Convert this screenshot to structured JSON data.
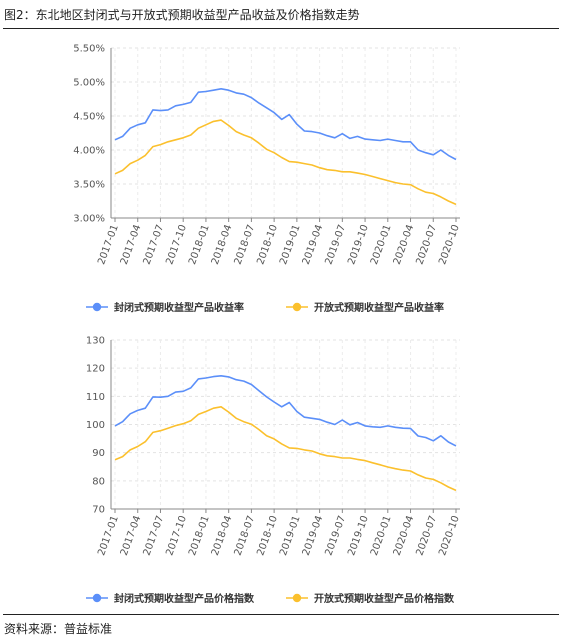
{
  "figure": {
    "title": "图2：东北地区封闭式与开放式预期收益型产品收益及价格指数走势",
    "source": "资料来源：普益标准"
  },
  "chart_data": [
    {
      "type": "line",
      "yformat": "percent",
      "ylim": [
        3.0,
        5.5
      ],
      "yticks": [
        3.0,
        3.5,
        4.0,
        4.5,
        5.0,
        5.5
      ],
      "ytick_labels": [
        "3.00%",
        "3.50%",
        "4.00%",
        "4.50%",
        "5.00%",
        "5.50%"
      ],
      "xtick_labels": [
        "2017-01",
        "2017-04",
        "2017-07",
        "2017-10",
        "2018-01",
        "2018-04",
        "2018-07",
        "2018-10",
        "2019-01",
        "2019-04",
        "2019-07",
        "2019-10",
        "2020-01",
        "2020-04",
        "2020-07",
        "2020-10"
      ],
      "grid": true,
      "legend_position": "bottom",
      "series": [
        {
          "name": "封闭式预期收益型产品收益率",
          "color": "#5b8ff9",
          "values": [
            4.15,
            4.2,
            4.32,
            4.37,
            4.4,
            4.59,
            4.58,
            4.59,
            4.65,
            4.67,
            4.7,
            4.85,
            4.86,
            4.88,
            4.9,
            4.88,
            4.84,
            4.82,
            4.77,
            4.69,
            4.62,
            4.55,
            4.45,
            4.52,
            4.38,
            4.28,
            4.27,
            4.25,
            4.21,
            4.18,
            4.24,
            4.17,
            4.2,
            4.16,
            4.15,
            4.14,
            4.16,
            4.14,
            4.12,
            4.12,
            4.0,
            3.96,
            3.93,
            4.0,
            3.92,
            3.86
          ]
        },
        {
          "name": "开放式预期收益型产品收益率",
          "color": "#fbc02d",
          "values": [
            3.65,
            3.7,
            3.8,
            3.85,
            3.92,
            4.05,
            4.08,
            4.12,
            4.15,
            4.18,
            4.22,
            4.32,
            4.37,
            4.42,
            4.44,
            4.36,
            4.27,
            4.22,
            4.18,
            4.1,
            4.01,
            3.96,
            3.89,
            3.83,
            3.82,
            3.8,
            3.78,
            3.74,
            3.71,
            3.7,
            3.68,
            3.68,
            3.66,
            3.64,
            3.61,
            3.58,
            3.55,
            3.52,
            3.5,
            3.49,
            3.43,
            3.38,
            3.36,
            3.31,
            3.25,
            3.2
          ]
        }
      ]
    },
    {
      "type": "line",
      "yformat": "number",
      "ylim": [
        70,
        130
      ],
      "yticks": [
        70,
        80,
        90,
        100,
        110,
        120,
        130
      ],
      "ytick_labels": [
        "70",
        "80",
        "90",
        "100",
        "110",
        "120",
        "130"
      ],
      "xtick_labels": [
        "2017-01",
        "2017-04",
        "2017-07",
        "2017-10",
        "2018-01",
        "2018-04",
        "2018-07",
        "2018-10",
        "2019-01",
        "2019-04",
        "2019-07",
        "2019-10",
        "2020-01",
        "2020-04",
        "2020-07",
        "2020-10"
      ],
      "grid": true,
      "legend_position": "bottom",
      "series": [
        {
          "name": "封闭式预期收益型产品价格指数",
          "color": "#5b8ff9",
          "values": [
            99.5,
            101.0,
            103.8,
            105.0,
            105.8,
            109.8,
            109.7,
            110.0,
            111.5,
            111.8,
            113.0,
            116.2,
            116.5,
            117.0,
            117.3,
            116.9,
            115.9,
            115.4,
            114.2,
            112.0,
            109.8,
            108.0,
            106.3,
            107.8,
            104.6,
            102.6,
            102.2,
            101.8,
            100.8,
            100.0,
            101.6,
            99.9,
            100.7,
            99.5,
            99.2,
            99.0,
            99.5,
            99.0,
            98.7,
            98.6,
            95.9,
            95.4,
            94.2,
            96.0,
            93.8,
            92.4
          ]
        },
        {
          "name": "开放式预期收益型产品价格指数",
          "color": "#fbc02d",
          "values": [
            87.5,
            88.6,
            91.0,
            92.2,
            93.9,
            97.2,
            97.8,
            98.7,
            99.6,
            100.3,
            101.3,
            103.6,
            104.6,
            105.8,
            106.3,
            104.4,
            102.2,
            101.0,
            100.1,
            98.2,
            96.0,
            94.9,
            93.1,
            91.7,
            91.5,
            91.0,
            90.6,
            89.6,
            88.9,
            88.6,
            88.1,
            88.1,
            87.6,
            87.2,
            86.4,
            85.7,
            84.9,
            84.3,
            83.8,
            83.5,
            82.1,
            81.0,
            80.5,
            79.3,
            77.8,
            76.6
          ]
        }
      ]
    }
  ]
}
